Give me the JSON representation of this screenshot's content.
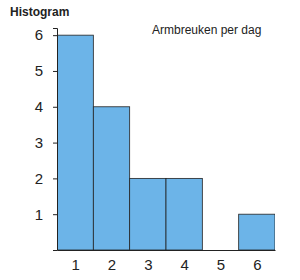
{
  "chart_data": {
    "type": "histogram",
    "title": "Histogram",
    "subtitle": "Armbreuken per dag",
    "bins": [
      0.5,
      1.5,
      2.5,
      3.5,
      4.5,
      5.5,
      6.5
    ],
    "values": [
      6,
      4,
      2,
      2,
      0,
      1
    ],
    "color": "#6cb4e8",
    "xlim": [
      0.5,
      6.5
    ],
    "ylim": [
      0,
      6.2
    ],
    "xticks": [
      1,
      2,
      3,
      4,
      5,
      6
    ],
    "yticks": [
      1,
      2,
      3,
      4,
      5,
      6
    ]
  }
}
